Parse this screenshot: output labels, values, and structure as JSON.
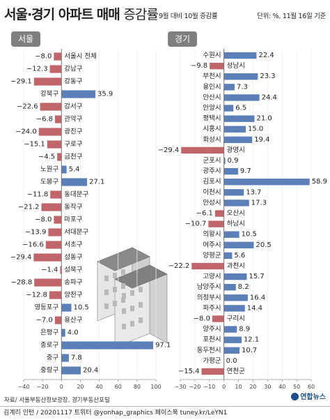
{
  "title_main": "서울·경기 아파트 매매",
  "title_sub": "증감률",
  "subtitle": "9월 대비 10월 증감률",
  "unit": "단위: %, 11월 16일 기준",
  "source": "자료/ 서울부동산정보광장, 경기부동산포털",
  "footer_text": "김계리 인턴 / 20201117  트위터 @yonhap_graphics  페이스북 tuney.kr/LeYN1",
  "logo_text": "연합뉴스",
  "colors": {
    "positive": "#5b7fb8",
    "negative": "#c0656a",
    "tab": "#7f7f7f"
  },
  "chart_data": [
    {
      "type": "bar",
      "title": "서울",
      "ylim": [
        -40,
        100
      ],
      "ticks": [
        -40,
        -20,
        0,
        20,
        40,
        60,
        80,
        100
      ],
      "categories": [
        "서울시 전체",
        "강남구",
        "강동구",
        "강북구",
        "강서구",
        "관악구",
        "광진구",
        "구로구",
        "금천구",
        "노원구",
        "도봉구",
        "동대문구",
        "동작구",
        "마포구",
        "서대문구",
        "서초구",
        "성동구",
        "성북구",
        "송파구",
        "양천구",
        "영등포구",
        "용산구",
        "은평구",
        "종로구",
        "중구",
        "중랑구"
      ],
      "values": [
        -8.0,
        -12.3,
        -29.1,
        35.9,
        -22.6,
        -6.8,
        -24.0,
        -15.1,
        -4.5,
        5.4,
        27.1,
        -11.8,
        -21.2,
        -8.0,
        -13.9,
        -16.6,
        -29.4,
        -1.4,
        -28.8,
        -12.8,
        10.5,
        -7.0,
        4.0,
        97.1,
        7.8,
        20.4
      ],
      "labels": [
        "−8.0",
        "−12.3",
        "−29.1",
        "35.9",
        "−22.6",
        "−6.8",
        "−24.0",
        "−15.1",
        "−4.5",
        "5.4",
        "27.1",
        "−11.8",
        "−21.2",
        "−8.0",
        "−13.9",
        "−16.6",
        "−29.4",
        "−1.4",
        "−28.8",
        "−12.8",
        "10.5",
        "−7.0",
        "4.0",
        "97.1",
        "7.8",
        "20.4"
      ]
    },
    {
      "type": "bar",
      "title": "경기",
      "ylim": [
        -30,
        60
      ],
      "ticks": [
        -30,
        -20,
        -10,
        0,
        10,
        20,
        30,
        40,
        50,
        60
      ],
      "categories": [
        "수원시",
        "성남시",
        "부천시",
        "용인시",
        "안산시",
        "안양시",
        "평택시",
        "시흥시",
        "화성시",
        "광명시",
        "군포시",
        "광주시",
        "김포시",
        "이천시",
        "안성시",
        "오산시",
        "하남시",
        "의왕시",
        "여주시",
        "양평군",
        "과천시",
        "고양시",
        "남양주시",
        "의정부시",
        "파주시",
        "구리시",
        "양주시",
        "포천시",
        "동두천시",
        "가평군",
        "연천군"
      ],
      "values": [
        22.4,
        -9.8,
        23.3,
        7.3,
        24.4,
        6.5,
        21.0,
        15.0,
        19.4,
        -29.4,
        0.9,
        9.7,
        58.9,
        13.7,
        17.3,
        -6.1,
        -10.7,
        10.5,
        20.5,
        5.6,
        -22.2,
        15.7,
        8.2,
        16.4,
        14.4,
        -8.0,
        8.9,
        12.1,
        10.7,
        0.0,
        -15.4
      ],
      "labels": [
        "22.4",
        "−9.8",
        "23.3",
        "7.3",
        "24.4",
        "6.5",
        "21.0",
        "15.0",
        "19.4",
        "−29.4",
        "0.9",
        "9.7",
        "58.9",
        "13.7",
        "17.3",
        "−6.1",
        "−10.7",
        "10.5",
        "20.5",
        "5.6",
        "−22.2",
        "15.7",
        "8.2",
        "16.4",
        "14.4",
        "−8.0",
        "8.9",
        "12.1",
        "10.7",
        "0.0",
        "−15.4"
      ]
    }
  ]
}
